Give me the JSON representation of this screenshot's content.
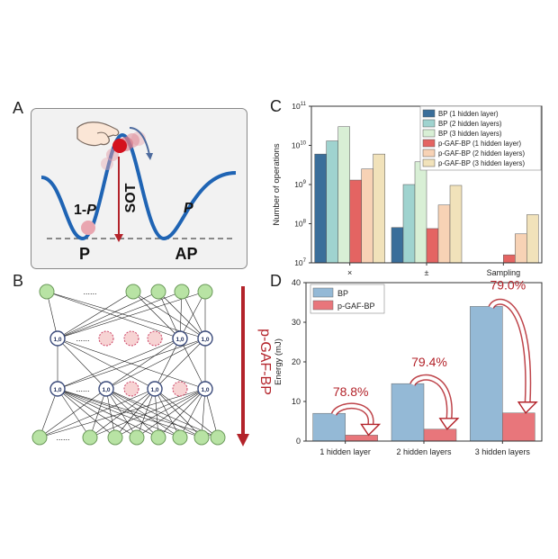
{
  "panels": {
    "A": {
      "label": "A",
      "one_minus_p": "1-",
      "p_italic": "P",
      "p_right": "P",
      "sot": "SOT",
      "state_left": "P",
      "state_right": "AP"
    },
    "B": {
      "label": "B",
      "dots": "......",
      "node_value": "1,0",
      "method": "p-GAF-BP"
    },
    "C": {
      "label": "C"
    },
    "D": {
      "label": "D"
    }
  },
  "colors": {
    "bp1": "#3a6e9a",
    "bp2": "#9fd3cf",
    "bp3": "#d8efd5",
    "pg1": "#e46462",
    "pg2": "#f7d2b5",
    "pg3": "#f1e2ba",
    "d_bp": "#94b9d6",
    "d_pg": "#e8767b",
    "accent_red": "#b3232a",
    "well_blue": "#1f64b4",
    "node_green": "#b8e3a4",
    "node_pink": "#f7d3d3"
  },
  "chart_data": [
    {
      "type": "bar",
      "panel": "C",
      "scale": "log",
      "ylabel": "Number of operations",
      "ylim": [
        10000000,
        100000000000
      ],
      "y_ticks": [
        {
          "base": "10",
          "exp": "7"
        },
        {
          "base": "10",
          "exp": "8"
        },
        {
          "base": "10",
          "exp": "9"
        },
        {
          "base": "10",
          "exp": "10"
        },
        {
          "base": "10",
          "exp": "11"
        }
      ],
      "categories": [
        "×",
        "±",
        "Sampling"
      ],
      "series": [
        {
          "name": "BP (1 hidden layer)",
          "values": [
            6000000000,
            80000000,
            null
          ]
        },
        {
          "name": "BP (2 hidden layers)",
          "values": [
            13000000000,
            1000000000,
            null
          ]
        },
        {
          "name": "BP (3 hidden layers)",
          "values": [
            30000000000,
            3800000000,
            null
          ]
        },
        {
          "name": "p-GAF-BP (1 hidden layer)",
          "values": [
            1300000000,
            75000000,
            16000000
          ]
        },
        {
          "name": "p-GAF-BP (2 hidden layers)",
          "values": [
            2500000000,
            300000000,
            55000000
          ]
        },
        {
          "name": "p-GAF-BP (3 hidden layers)",
          "values": [
            6000000000,
            950000000,
            170000000
          ]
        }
      ],
      "legend_position": "top-right"
    },
    {
      "type": "bar",
      "panel": "D",
      "ylabel": "Energy (mJ)",
      "ylim": [
        0,
        40
      ],
      "y_ticks": [
        "0",
        "10",
        "20",
        "30",
        "40"
      ],
      "categories": [
        "1 hidden layer",
        "2 hidden layers",
        "3 hidden layers"
      ],
      "series": [
        {
          "name": "BP",
          "values": [
            7.0,
            14.5,
            34.0
          ]
        },
        {
          "name": "p-GAF-BP",
          "values": [
            1.5,
            3.0,
            7.1
          ]
        }
      ],
      "annotations": [
        "78.8%",
        "79.4%",
        "79.0%"
      ],
      "legend_position": "top-left"
    }
  ]
}
